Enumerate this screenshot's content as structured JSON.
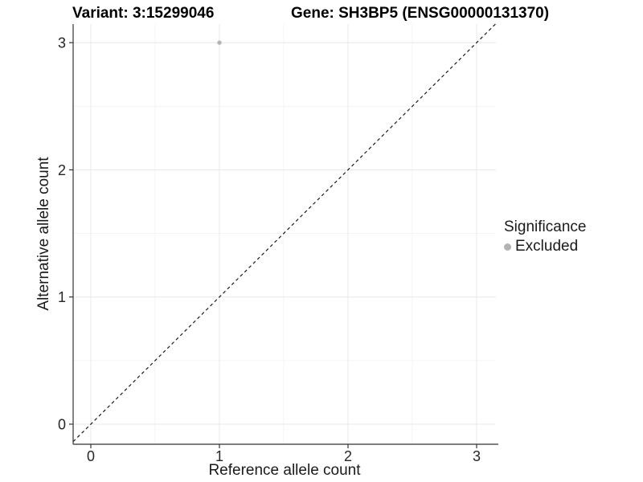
{
  "header": {
    "variant_title": "Variant: 3:15299046",
    "gene_title": "Gene: SH3BP5 (ENSG00000131370)"
  },
  "legend": {
    "title": "Significance",
    "items": [
      {
        "label": "Excluded",
        "color": "#b3b3b3"
      }
    ]
  },
  "colors": {
    "background": "#ffffff",
    "grid_major": "#e8e8e8",
    "grid_minor": "#f4f4f4",
    "axis": "#333333",
    "tick_text": "#262626",
    "reference_line": "#1a1a1a",
    "point": "#b3b3b3"
  },
  "chart_data": {
    "type": "scatter",
    "title": "Variant: 3:15299046    Gene: SH3BP5 (ENSG00000131370)",
    "xlabel": "Reference allele count",
    "ylabel": "Alternative allele count",
    "x_ticks": [
      0,
      1,
      2,
      3
    ],
    "y_ticks": [
      0,
      1,
      2,
      3
    ],
    "x_minor_ticks": [
      0.5,
      1.5,
      2.5
    ],
    "y_minor_ticks": [
      0.5,
      1.5,
      2.5
    ],
    "xlim": [
      -0.1375,
      3.15
    ],
    "ylim": [
      -0.158,
      3.146
    ],
    "grid": true,
    "points": [
      {
        "x": 1,
        "y": 3,
        "series": "Excluded",
        "color": "#b3b3b3"
      }
    ],
    "reference_line": {
      "slope": 1,
      "intercept": 0,
      "style": "dashed"
    },
    "legend": {
      "title": "Significance",
      "entries": [
        "Excluded"
      ],
      "position": "right"
    }
  }
}
